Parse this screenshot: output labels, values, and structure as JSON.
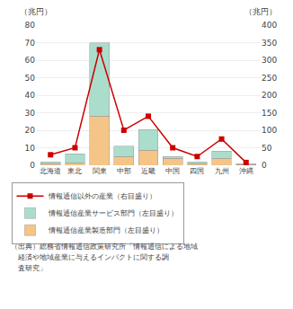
{
  "chart_data": {
    "type": "bar",
    "categories": [
      "北海道",
      "東北",
      "関東",
      "中部",
      "近畿",
      "中国",
      "四国",
      "九州",
      "沖縄"
    ],
    "series": [
      {
        "name": "情報通信産業製造部門（左目盛り）",
        "type": "bar",
        "color": "#f5c587",
        "values": [
          1.0,
          1.5,
          28.0,
          5.0,
          8.5,
          4.0,
          1.0,
          4.0,
          0.3
        ]
      },
      {
        "name": "情報通信産業サービス部門（左目盛り）",
        "type": "bar",
        "color": "#aaddcc",
        "values": [
          1.0,
          5.0,
          42.0,
          6.0,
          12.0,
          1.0,
          1.0,
          4.0,
          0.5
        ]
      },
      {
        "name": "情報通信以外の産業（右目盛り）",
        "type": "line",
        "axis": "y2",
        "color": "#cc0000",
        "marker": "square",
        "line_style": "solid",
        "values": [
          30,
          50,
          330,
          100,
          140,
          50,
          25,
          75,
          8
        ]
      }
    ],
    "stacked": true,
    "ylabel": "（兆円）",
    "y2label": "（兆円）",
    "ylim": [
      0,
      80
    ],
    "yticks": [
      0,
      10,
      20,
      30,
      40,
      50,
      60,
      70,
      80
    ],
    "y2lim": [
      0,
      400
    ],
    "y2ticks": [
      0,
      50,
      100,
      150,
      200,
      250,
      300,
      350,
      400
    ],
    "grid": true,
    "legend": "bottom",
    "annotations": [
      "（出典）総務省情報通信政策研究所「情報通信による地域",
      "　経済や地域産業に与えるインパクトに関する調",
      "　査研究」"
    ]
  }
}
